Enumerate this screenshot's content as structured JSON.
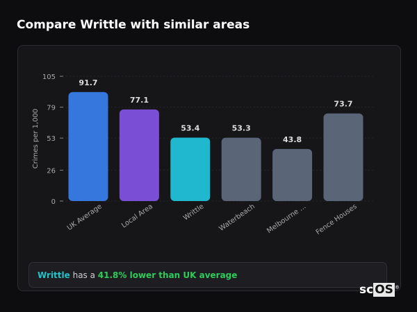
{
  "title": "Compare Writtle with similar areas",
  "chart_data": {
    "type": "bar",
    "ylabel": "Crimes per 1,000",
    "xlabel": "",
    "ylim": [
      0,
      105
    ],
    "yticks": [
      0,
      26,
      53,
      79,
      105
    ],
    "categories": [
      "UK Average",
      "Local Area",
      "Writtle",
      "Waterbeach",
      "Melbourne ...",
      "Fence Houses"
    ],
    "values": [
      91.7,
      77.1,
      53.4,
      53.3,
      43.8,
      73.7
    ],
    "colors": [
      "#3577dc",
      "#7a4fd6",
      "#1fb8cf",
      "#5a6577",
      "#5a6577",
      "#5a6577"
    ],
    "data_labels": [
      "91.7",
      "77.1",
      "53.4",
      "53.3",
      "43.8",
      "73.7"
    ],
    "grid": true
  },
  "footer": {
    "area": "Writtle",
    "middle": " has a ",
    "highlight": "41.8% lower than UK average"
  },
  "logo": {
    "text_a": "sc",
    "text_b": "OS",
    "mark": "®"
  }
}
